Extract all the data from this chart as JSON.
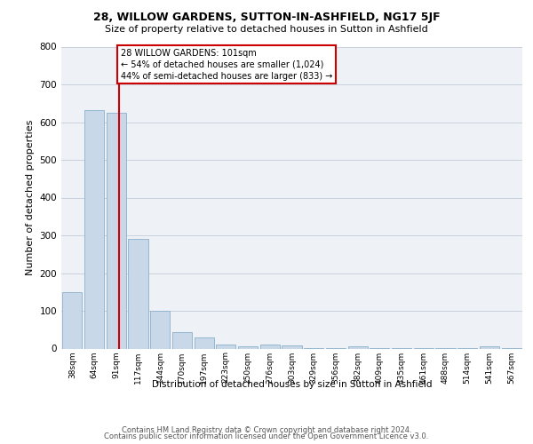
{
  "title1": "28, WILLOW GARDENS, SUTTON-IN-ASHFIELD, NG17 5JF",
  "title2": "Size of property relative to detached houses in Sutton in Ashfield",
  "xlabel": "Distribution of detached houses by size in Sutton in Ashfield",
  "ylabel": "Number of detached properties",
  "footer1": "Contains HM Land Registry data © Crown copyright and database right 2024.",
  "footer2": "Contains public sector information licensed under the Open Government Licence v3.0.",
  "annotation_line1": "28 WILLOW GARDENS: 101sqm",
  "annotation_line2": "← 54% of detached houses are smaller (1,024)",
  "annotation_line3": "44% of semi-detached houses are larger (833) →",
  "bar_color": "#c8d8e8",
  "bar_edge_color": "#8ab0cc",
  "vline_color": "#cc0000",
  "annotation_box_edgecolor": "#cc0000",
  "bg_color": "#eef2f7",
  "grid_color": "#c8d0dc",
  "categories": [
    "38sqm",
    "64sqm",
    "91sqm",
    "117sqm",
    "144sqm",
    "170sqm",
    "197sqm",
    "223sqm",
    "250sqm",
    "276sqm",
    "303sqm",
    "329sqm",
    "356sqm",
    "382sqm",
    "409sqm",
    "435sqm",
    "461sqm",
    "488sqm",
    "514sqm",
    "541sqm",
    "567sqm"
  ],
  "values": [
    150,
    632,
    625,
    290,
    100,
    43,
    29,
    10,
    5,
    10,
    8,
    2,
    2,
    7,
    2,
    2,
    2,
    2,
    2,
    7,
    2
  ],
  "ylim": [
    0,
    800
  ],
  "yticks": [
    0,
    100,
    200,
    300,
    400,
    500,
    600,
    700,
    800
  ],
  "vline_x": 2.15
}
